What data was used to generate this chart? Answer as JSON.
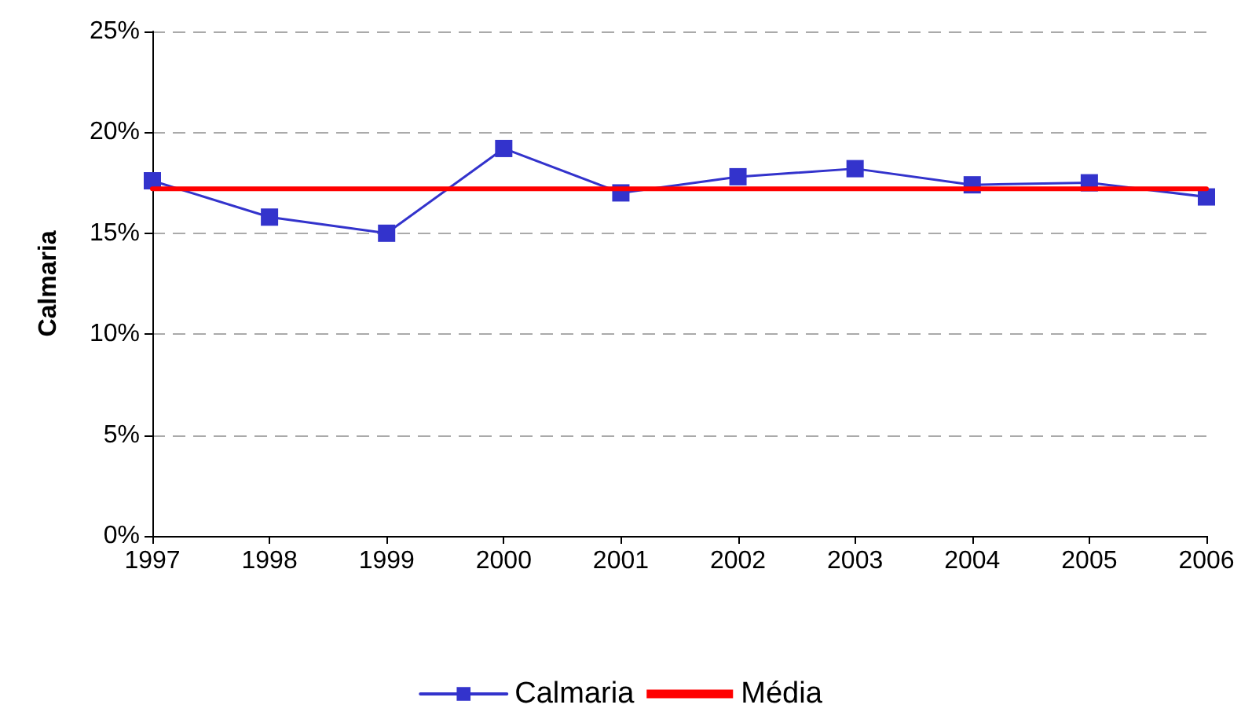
{
  "chart_data": {
    "type": "line",
    "ylabel": "Calmaria",
    "categories": [
      "1997",
      "1998",
      "1999",
      "2000",
      "2001",
      "2002",
      "2003",
      "2004",
      "2005",
      "2006"
    ],
    "series": [
      {
        "name": "Calmaria",
        "color": "#3333cc",
        "marker": "square",
        "values": [
          17.6,
          15.8,
          15.0,
          19.2,
          17.0,
          17.8,
          18.2,
          17.4,
          17.5,
          16.8
        ]
      },
      {
        "name": "Média",
        "color": "#ff0000",
        "marker": "none",
        "values": [
          17.2,
          17.2,
          17.2,
          17.2,
          17.2,
          17.2,
          17.2,
          17.2,
          17.2,
          17.2
        ]
      }
    ],
    "ylim": [
      0,
      25
    ],
    "yticks": [
      {
        "value": 0,
        "label": "0%"
      },
      {
        "value": 5,
        "label": "5%"
      },
      {
        "value": 10,
        "label": "10%"
      },
      {
        "value": 15,
        "label": "15%"
      },
      {
        "value": 20,
        "label": "20%"
      },
      {
        "value": 25,
        "label": "25%"
      }
    ],
    "grid": "y",
    "legend": "bottom"
  }
}
